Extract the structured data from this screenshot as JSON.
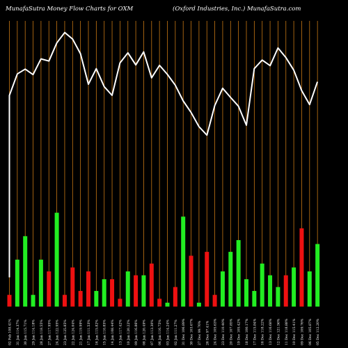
{
  "header": {
    "left": "MunafaSutra  Money Flow  Charts for OXM",
    "right": "(Oxford Industries,  Inc.) MunafaSutra.com"
  },
  "colors": {
    "background": "#000000",
    "up": "#22ee22",
    "down": "#ee1111",
    "price_line": "#ffffff",
    "grid": "#c87814"
  },
  "chart_data": {
    "type": "bar",
    "overlay": "line",
    "grid": "vertical lines",
    "categories": [
      "02 Feb 108.41%",
      "31 Jan 114.37%",
      "30 Jan 115.71%",
      "29 Jan 114.18%",
      "28 Jan 118.55%",
      "27 Jan 117.95%",
      "24 Jan 122.95%",
      "23 Jan 125.85%",
      "22 Jan 124.04%",
      "21 Jan 119.99%",
      "17 Jan 111.53%",
      "16 Jan 115.82%",
      "15 Jan 110.85%",
      "14 Jan 108.44%",
      "13 Jan 117.42%",
      "10 Jan 120.22%",
      "09 Jan 116.86%",
      "08 Jan 120.49%",
      "07 Jan 113.30%",
      "06 Jan 116.75%",
      "03 Jan 114.24%",
      "02 Jan 111.27%",
      "31 Dec 106.89%",
      "30 Dec 103.67%",
      "27 Dec 99.76%",
      "26 Dec 97.41%",
      "24 Dec 105.63%",
      "23 Dec 110.40%",
      "20 Dec 107.85%",
      "19 Dec 105.42%",
      "18 Dec 100.17%",
      "17 Dec 115.84%",
      "16 Dec 118.22%",
      "13 Dec 116.68%",
      "12 Dec 121.56%",
      "11 Dec 118.88%",
      "10 Dec 115.41%",
      "09 Dec 109.76%",
      "06 Dec 105.87%",
      "05 Dec 112.20%"
    ],
    "flow_values": [
      3,
      12,
      18,
      3,
      12,
      9,
      24,
      3,
      10,
      4,
      9,
      4,
      7,
      7,
      2,
      9,
      8,
      8,
      11,
      2,
      1,
      5,
      23,
      13,
      1,
      14,
      3,
      9,
      14,
      17,
      7,
      4,
      11,
      8,
      5,
      8,
      10,
      20,
      9,
      16
    ],
    "flow_direction": [
      "down",
      "up",
      "up",
      "up",
      "up",
      "down",
      "up",
      "down",
      "down",
      "down",
      "down",
      "up",
      "up",
      "down",
      "down",
      "up",
      "down",
      "up",
      "down",
      "down",
      "up",
      "down",
      "up",
      "down",
      "up",
      "down",
      "down",
      "up",
      "up",
      "up",
      "up",
      "up",
      "up",
      "up",
      "up",
      "down",
      "up",
      "down",
      "up",
      "up"
    ],
    "price": [
      108.41,
      114.37,
      115.71,
      114.18,
      118.55,
      117.95,
      122.95,
      125.85,
      124.04,
      119.99,
      111.53,
      115.82,
      110.85,
      108.44,
      117.42,
      120.22,
      116.86,
      120.49,
      113.3,
      116.75,
      114.24,
      111.27,
      106.89,
      103.67,
      99.76,
      97.41,
      105.63,
      110.4,
      107.85,
      105.42,
      100.17,
      115.84,
      118.22,
      116.68,
      121.56,
      118.88,
      115.41,
      109.76,
      105.87,
      112.2
    ],
    "first_price_start": 58.0,
    "price_range": [
      50,
      131
    ],
    "flow_range": [
      0,
      25
    ]
  }
}
